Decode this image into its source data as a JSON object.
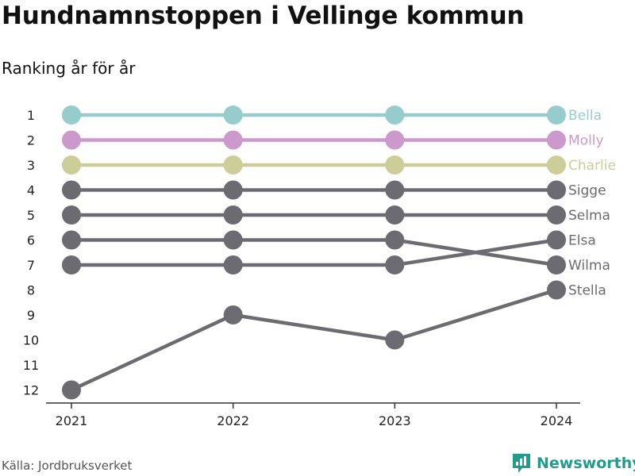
{
  "title": "Hundnamnstoppen i Vellinge kommun",
  "subtitle": "Ranking år för år",
  "source": "Källa: Jordbruksverket",
  "brand": "Newsworthy",
  "colors": {
    "highlight_1": "#96cccc",
    "highlight_2": "#cc99cc",
    "highlight_3": "#cdcd99",
    "other": "#6b6b71",
    "axis": "#333333",
    "brand": "#1f9c8c"
  },
  "chart_data": {
    "type": "line",
    "x": [
      "2021",
      "2022",
      "2023",
      "2024"
    ],
    "y_ticks": [
      "1",
      "2",
      "3",
      "4",
      "5",
      "6",
      "7",
      "8",
      "9",
      "10",
      "11",
      "12"
    ],
    "ylim": [
      1,
      12
    ],
    "y_reversed": true,
    "series": [
      {
        "name": "Bella",
        "values": [
          1,
          1,
          1,
          1
        ],
        "color": "#96cccc"
      },
      {
        "name": "Molly",
        "values": [
          2,
          2,
          2,
          2
        ],
        "color": "#cc99cc"
      },
      {
        "name": "Charlie",
        "values": [
          3,
          3,
          3,
          3
        ],
        "color": "#cdcd99"
      },
      {
        "name": "Sigge",
        "values": [
          4,
          4,
          4,
          4
        ],
        "color": "#6b6b71"
      },
      {
        "name": "Selma",
        "values": [
          5,
          5,
          5,
          5
        ],
        "color": "#6b6b71"
      },
      {
        "name": "Elsa",
        "values": [
          7,
          7,
          7,
          6
        ],
        "color": "#6b6b71"
      },
      {
        "name": "Wilma",
        "values": [
          6,
          6,
          6,
          7
        ],
        "color": "#6b6b71"
      },
      {
        "name": "Stella",
        "values": [
          12,
          9,
          10,
          8
        ],
        "color": "#6b6b71"
      }
    ]
  }
}
